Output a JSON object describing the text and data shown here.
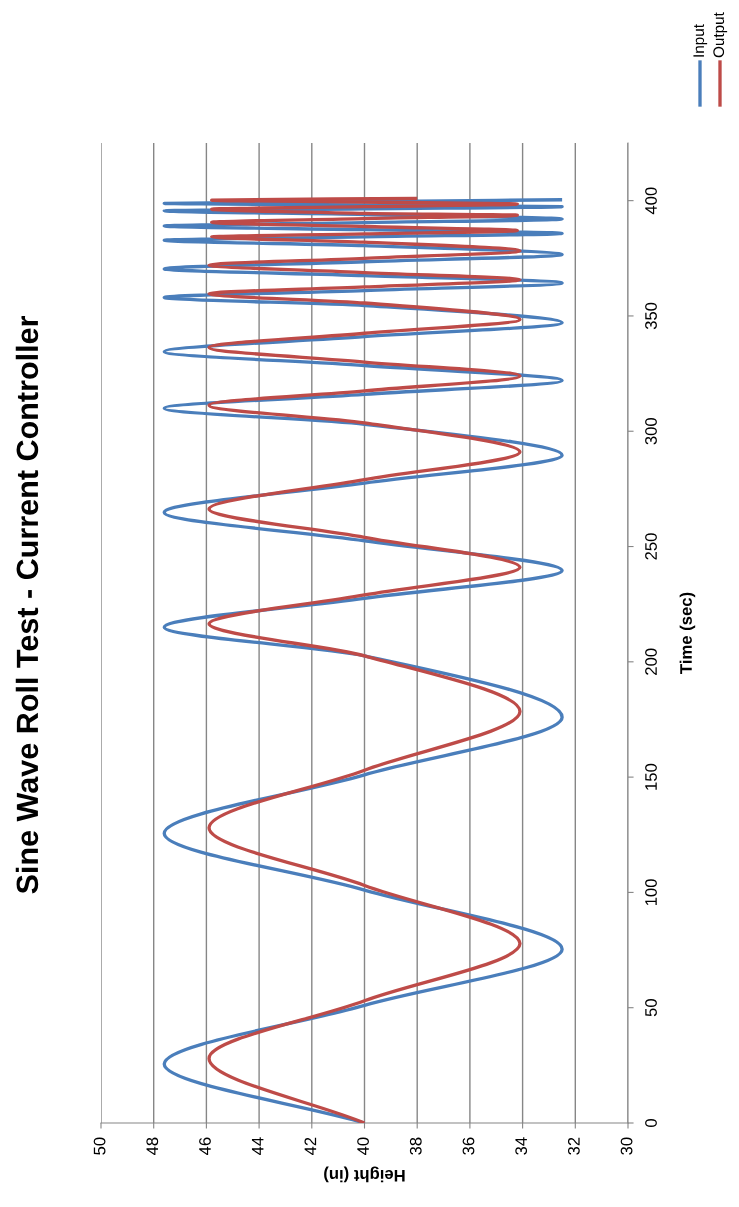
{
  "chart_data": {
    "type": "line",
    "title": "Sine Wave Roll Test - Current Controller",
    "xlabel": "Height (in)",
    "ylabel": "Time (sec)",
    "xlim": [
      50,
      30
    ],
    "xticks": [
      50,
      48,
      46,
      44,
      42,
      40,
      38,
      36,
      34,
      32,
      30
    ],
    "ylim": [
      0,
      425
    ],
    "yticks": [
      0,
      50,
      100,
      150,
      200,
      250,
      300,
      350,
      400
    ],
    "grid": "x",
    "legend": "top right",
    "marker": "none",
    "line_style": "solid",
    "series": [
      {
        "name": "Input",
        "color": "#4a7ebb",
        "values": [
          0,
          25.6,
          51,
          75.4,
          101,
          125.6,
          151,
          176,
          202.6,
          215,
          227.5,
          239.6,
          252.5,
          264.8,
          277.5,
          289.6,
          303,
          310,
          316,
          322,
          328.5,
          334.5,
          341,
          347,
          354.5,
          358,
          361,
          364.3,
          367.5,
          370.4,
          373.5,
          376.6,
          380.5,
          382.8,
          384.3,
          385.8,
          387.4,
          389,
          390.5,
          392,
          394,
          395.6,
          396.5,
          397.4,
          398.1,
          398.8,
          399.6,
          400.4
        ],
        "x": [
          40,
          47.6,
          40,
          32.5,
          40,
          47.6,
          40,
          32.5,
          40,
          47.6,
          40,
          32.5,
          40,
          47.6,
          40,
          32.5,
          40,
          47.6,
          40,
          32.5,
          40,
          47.6,
          40,
          32.5,
          40,
          47.6,
          40,
          32.5,
          40,
          47.6,
          40,
          32.5,
          40,
          47.6,
          40,
          32.5,
          40,
          47.6,
          40,
          32.5,
          40,
          47.6,
          40,
          32.5,
          40,
          47.6,
          40,
          32.5
        ]
      },
      {
        "name": "Output",
        "color": "#be4b48",
        "values": [
          0,
          28,
          53,
          77.8,
          103,
          128,
          153,
          178.5,
          202.6,
          216.5,
          229,
          241,
          254,
          266.3,
          279,
          291,
          303.6,
          311.3,
          317.5,
          324,
          330,
          336.3,
          342.5,
          348.5,
          355.6,
          359.6,
          362.6,
          365.7,
          368.8,
          372,
          375,
          378.2,
          382,
          384.3,
          385.6,
          387,
          388.8,
          390.6,
          392.2,
          393.7,
          394.5,
          396.3,
          397.4,
          398.5,
          399.4,
          400.2,
          401
        ],
        "x": [
          40,
          45.9,
          40,
          34.1,
          40,
          45.9,
          40,
          34.1,
          40,
          45.9,
          40,
          34.1,
          40,
          45.9,
          40,
          34.1,
          40,
          45.9,
          40,
          34.1,
          40,
          45.9,
          40,
          34.1,
          40,
          45.9,
          40,
          34.1,
          40,
          45.9,
          40,
          34.1,
          40,
          45.8,
          40,
          34.2,
          40,
          45.8,
          40,
          34.2,
          40,
          45.8,
          40,
          34.2,
          40,
          45.8,
          38
        ]
      }
    ]
  }
}
